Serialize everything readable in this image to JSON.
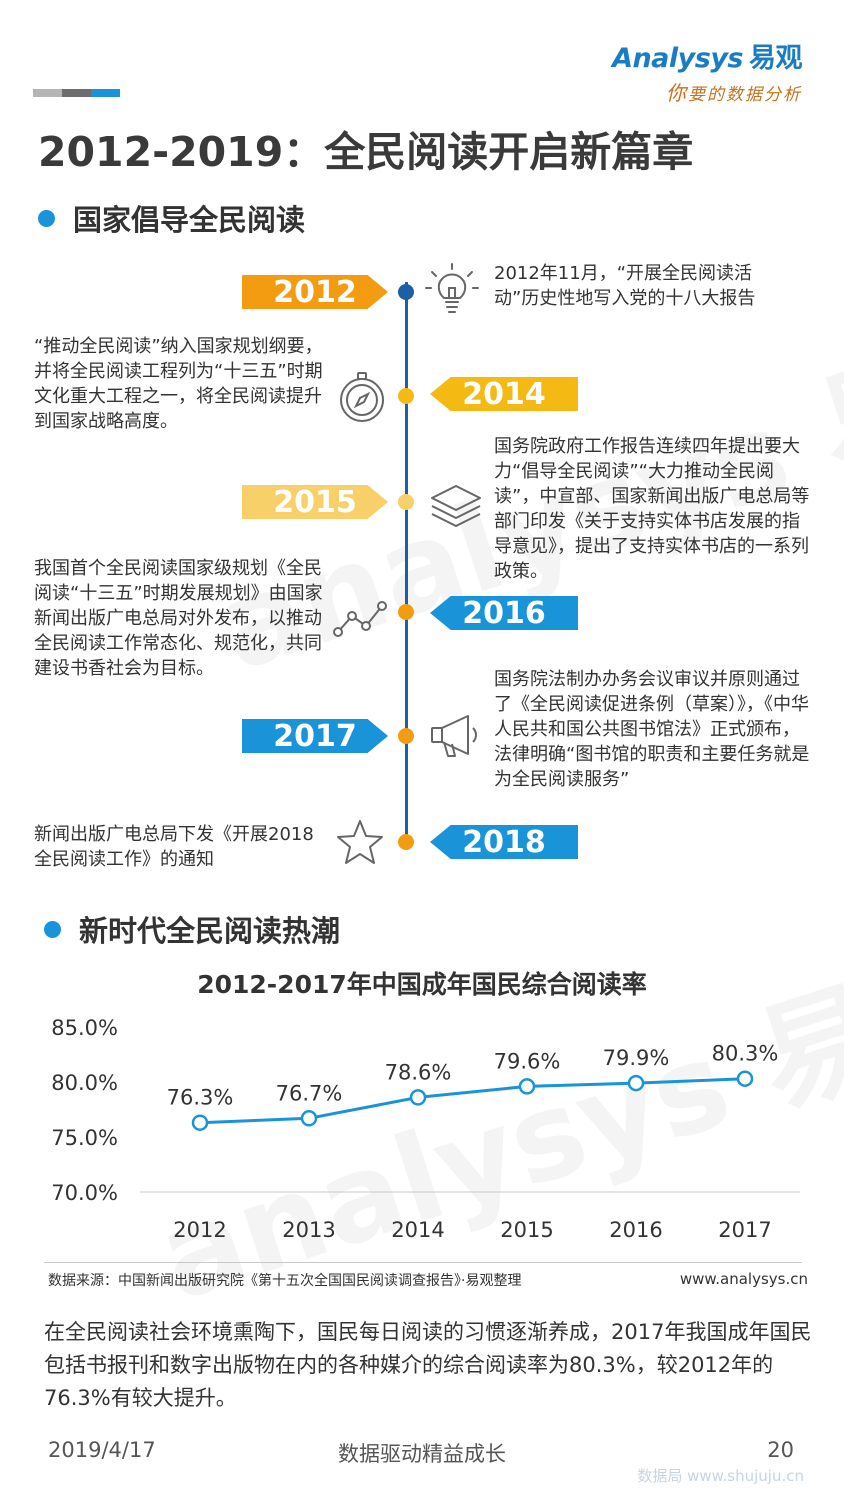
{
  "logo": {
    "brand": "Analysys",
    "brand_cn": "易观",
    "tagline_first": "你",
    "tagline_rest": "要的数据分析"
  },
  "colors": {
    "accent_blue": "#1a94d8",
    "dark_blue": "#1c5fa3",
    "orange": "#f39c12",
    "yellow": "#f5b913",
    "pale_yellow": "#f7d06a",
    "gray": "#8a8a8a"
  },
  "title": "2012-2019：全民阅读开启新篇章",
  "section1": {
    "label": "国家倡导全民阅读"
  },
  "timeline": [
    {
      "year": "2012",
      "icon": "lightbulb-icon",
      "text": "2012年11月，“开展全民阅读活动”历史性地写入党的十八大报告"
    },
    {
      "year": "2014",
      "icon": "compass-icon",
      "text": "“推动全民阅读”纳入国家规划纲要，并将全民阅读工程列为“十三五”时期文化重大工程之一，将全民阅读提升到国家战略高度。"
    },
    {
      "year": "2015",
      "icon": "layers-icon",
      "text": "国务院政府工作报告连续四年提出要大力“倡导全民阅读”“大力推动全民阅读”，中宣部、国家新闻出版广电总局等部门印发《关于支持实体书店发展的指导意见》，提出了支持实体书店的一系列政策。"
    },
    {
      "year": "2016",
      "icon": "trend-line-icon",
      "text": "我国首个全民阅读国家级规划《全民阅读“十三五”时期发展规划》由国家新闻出版广电总局对外发布，以推动全民阅读工作常态化、规范化，共同建设书香社会为目标。"
    },
    {
      "year": "2017",
      "icon": "megaphone-icon",
      "text": "国务院法制办办务会议审议并原则通过了《全民阅读促进条例（草案）》，《中华人民共和国公共图书馆法》正式颁布，法律明确“图书馆的职责和主要任务就是为全民阅读服务”"
    },
    {
      "year": "2018",
      "icon": "star-icon",
      "text": "新闻出版广电总局下发《开展2018全民阅读工作》的通知"
    }
  ],
  "section2": {
    "label": "新时代全民阅读热潮"
  },
  "chart_data": {
    "type": "line",
    "title": "2012-2017年中国成年国民综合阅读率",
    "x": [
      "2012",
      "2013",
      "2014",
      "2015",
      "2016",
      "2017"
    ],
    "y": [
      76.3,
      76.7,
      78.6,
      79.6,
      79.9,
      80.3
    ],
    "data_labels": [
      "76.3%",
      "76.7%",
      "78.6%",
      "79.6%",
      "79.9%",
      "80.3%"
    ],
    "ylim": [
      70,
      85
    ],
    "yticks": [
      "70.0%",
      "75.0%",
      "80.0%",
      "85.0%"
    ],
    "ytick_values": [
      70,
      75,
      80,
      85
    ],
    "color": "#1a94d8",
    "grid": false
  },
  "source": "数据来源：中国新闻出版研究院《第十五次全国国民阅读调查报告》·易观整理",
  "site": "www.analysys.cn",
  "paragraph": "在全民阅读社会环境熏陶下，国民每日阅读的习惯逐渐养成，2017年我国成年国民包括书报刊和数字出版物在内的各种媒介的综合阅读率为80.3%，较2012年的76.3%有较大提升。",
  "footer": {
    "date": "2019/4/17",
    "slogan": "数据驱动精益成长",
    "page": "20",
    "watermark": "数据局 www.shujuju.cn"
  }
}
